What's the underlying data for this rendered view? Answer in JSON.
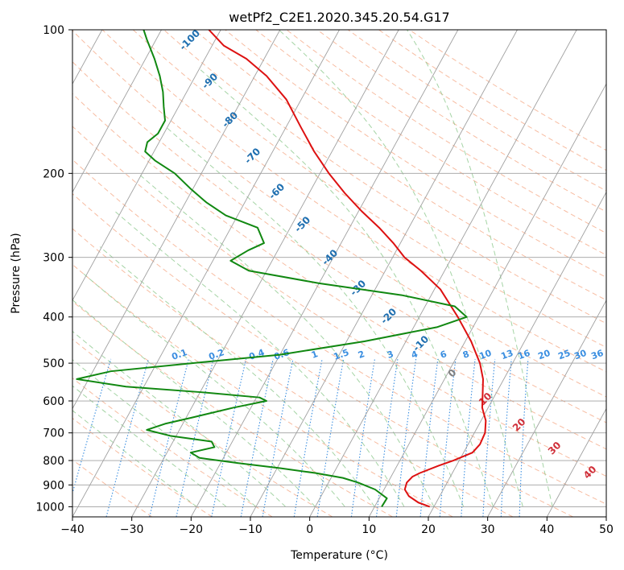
{
  "chart_data": {
    "type": "line",
    "title": "wetPf2_C2E1.2020.345.20.54.G17",
    "xlabel": "Temperature (°C)",
    "ylabel": "Pressure (hPa)",
    "xlim": [
      -40,
      50
    ],
    "ylim": [
      1050,
      100
    ],
    "y_scale": "log",
    "grid": true,
    "x_ticks": [
      -40,
      -30,
      -20,
      -10,
      0,
      10,
      20,
      30,
      40,
      50
    ],
    "y_ticks": [
      100,
      200,
      300,
      400,
      500,
      600,
      700,
      800,
      900,
      1000
    ],
    "x_tick_labels": [
      "−40",
      "−30",
      "−20",
      "−10",
      "0",
      "10",
      "20",
      "30",
      "40",
      "50"
    ],
    "y_tick_labels": [
      "100",
      "200",
      "300",
      "400",
      "500",
      "600",
      "700",
      "800",
      "900",
      "1000"
    ],
    "series": [
      {
        "color": "#dd1111",
        "points": [
          [
            1000,
            19.3
          ],
          [
            980,
            17.0
          ],
          [
            950,
            14.8
          ],
          [
            920,
            13.5
          ],
          [
            890,
            13.2
          ],
          [
            865,
            13.6
          ],
          [
            850,
            14.5
          ],
          [
            820,
            17.0
          ],
          [
            800,
            19.0
          ],
          [
            770,
            21.5
          ],
          [
            740,
            22.0
          ],
          [
            700,
            21.8
          ],
          [
            660,
            20.8
          ],
          [
            620,
            19.0
          ],
          [
            580,
            17.8
          ],
          [
            540,
            16.5
          ],
          [
            500,
            14.5
          ],
          [
            450,
            11.0
          ],
          [
            400,
            6.5
          ],
          [
            350,
            1.0
          ],
          [
            320,
            -4.0
          ],
          [
            300,
            -8.0
          ],
          [
            280,
            -11.2
          ],
          [
            260,
            -15.0
          ],
          [
            240,
            -19.5
          ],
          [
            220,
            -24.0
          ],
          [
            200,
            -28.5
          ],
          [
            180,
            -33.0
          ],
          [
            160,
            -37.5
          ],
          [
            140,
            -42.5
          ],
          [
            125,
            -48.0
          ],
          [
            115,
            -53.0
          ],
          [
            108,
            -58.0
          ],
          [
            100,
            -62.0
          ]
        ]
      },
      {
        "color": "#118811",
        "points": [
          [
            1000,
            11.2
          ],
          [
            960,
            11.3
          ],
          [
            920,
            8.5
          ],
          [
            890,
            5.0
          ],
          [
            870,
            2.0
          ],
          [
            850,
            -3.0
          ],
          [
            830,
            -9.5
          ],
          [
            810,
            -17.0
          ],
          [
            790,
            -24.0
          ],
          [
            770,
            -26.0
          ],
          [
            750,
            -22.5
          ],
          [
            730,
            -23.5
          ],
          [
            710,
            -31.0
          ],
          [
            690,
            -35.5
          ],
          [
            670,
            -33.0
          ],
          [
            650,
            -29.0
          ],
          [
            620,
            -23.0
          ],
          [
            600,
            -18.0
          ],
          [
            590,
            -19.5
          ],
          [
            575,
            -30.0
          ],
          [
            560,
            -43.0
          ],
          [
            540,
            -52.0
          ],
          [
            520,
            -47.0
          ],
          [
            500,
            -34.0
          ],
          [
            480,
            -20.0
          ],
          [
            450,
            -7.0
          ],
          [
            420,
            4.0
          ],
          [
            400,
            8.0
          ],
          [
            380,
            5.0
          ],
          [
            360,
            -5.0
          ],
          [
            340,
            -20.0
          ],
          [
            320,
            -33.0
          ],
          [
            305,
            -37.0
          ],
          [
            290,
            -35.0
          ],
          [
            280,
            -33.0
          ],
          [
            260,
            -35.5
          ],
          [
            245,
            -42.0
          ],
          [
            230,
            -46.5
          ],
          [
            215,
            -50.5
          ],
          [
            200,
            -54.5
          ],
          [
            188,
            -59.0
          ],
          [
            180,
            -61.5
          ],
          [
            172,
            -62.0
          ],
          [
            165,
            -61.0
          ],
          [
            155,
            -61.0
          ],
          [
            145,
            -62.5
          ],
          [
            135,
            -64.0
          ],
          [
            125,
            -66.0
          ],
          [
            115,
            -68.5
          ],
          [
            105,
            -71.5
          ],
          [
            100,
            -73.0
          ]
        ]
      }
    ],
    "annotations": {
      "dry_adiabat_labels": [
        "-100",
        "-90",
        "-80",
        "-70",
        "-60",
        "-50",
        "-40",
        "-30",
        "-20",
        "-10",
        "0",
        "10",
        "20",
        "30",
        "40"
      ],
      "mixing_ratio_labels": [
        "0.1",
        "0.2",
        "0.4",
        "0.6",
        "1",
        "1.5",
        "2",
        "3",
        "4",
        "6",
        "8",
        "10",
        "13",
        "16",
        "20",
        "25",
        "30",
        "36"
      ]
    },
    "style": {
      "dry_adiabat_color": "#f4a582",
      "moist_adiabat_color": "#8fc98f",
      "mixing_ratio_color": "#3a8ee0",
      "isotherm_color": "#a0a0a0",
      "dry_label_cold": "#1f6fb0",
      "dry_label_zero": "#808080",
      "dry_label_warm": "#d0303a",
      "mixing_label_color": "#3a8ee0"
    }
  }
}
